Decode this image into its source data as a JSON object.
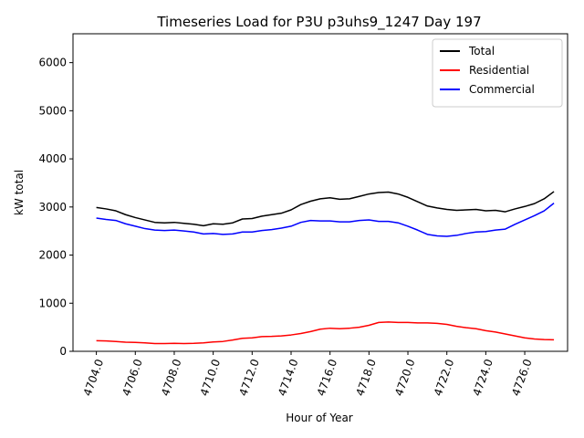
{
  "chart_data": {
    "type": "line",
    "title": "Timeseries Load for P3U p3uhs9_1247  Day 197",
    "xlabel": "Hour of Year",
    "ylabel": "kW total",
    "xlim": [
      4702.8,
      4728.2
    ],
    "ylim": [
      0,
      6600
    ],
    "xticks": [
      4704,
      4706,
      4708,
      4710,
      4712,
      4714,
      4716,
      4718,
      4720,
      4722,
      4724,
      4726
    ],
    "xtick_labels": [
      "4704.0",
      "4706.0",
      "4708.0",
      "4710.0",
      "4712.0",
      "4714.0",
      "4716.0",
      "4718.0",
      "4720.0",
      "4722.0",
      "4724.0",
      "4726.0"
    ],
    "yticks": [
      0,
      1000,
      2000,
      3000,
      4000,
      5000,
      6000
    ],
    "ytick_labels": [
      "0",
      "1000",
      "2000",
      "3000",
      "4000",
      "5000",
      "6000"
    ],
    "grid": false,
    "legend_position": "top-right",
    "x": [
      4704.0,
      4704.5,
      4705.0,
      4705.5,
      4706.0,
      4706.5,
      4707.0,
      4707.5,
      4708.0,
      4708.5,
      4709.0,
      4709.5,
      4710.0,
      4710.5,
      4711.0,
      4711.5,
      4712.0,
      4712.5,
      4713.0,
      4713.5,
      4714.0,
      4714.5,
      4715.0,
      4715.5,
      4716.0,
      4716.5,
      4717.0,
      4717.5,
      4718.0,
      4718.5,
      4719.0,
      4719.5,
      4720.0,
      4720.5,
      4721.0,
      4721.5,
      4722.0,
      4722.5,
      4723.0,
      4723.5,
      4724.0,
      4724.5,
      4725.0,
      4725.5,
      4726.0,
      4726.5,
      4727.0,
      4727.5
    ],
    "series": [
      {
        "name": "Total",
        "color": "#000000",
        "values": [
          2990,
          2960,
          2920,
          2840,
          2780,
          2730,
          2680,
          2670,
          2680,
          2660,
          2640,
          2610,
          2650,
          2640,
          2670,
          2750,
          2760,
          2810,
          2840,
          2870,
          2940,
          3050,
          3120,
          3170,
          3190,
          3160,
          3170,
          3220,
          3270,
          3300,
          3310,
          3270,
          3200,
          3110,
          3020,
          2980,
          2950,
          2930,
          2940,
          2950,
          2920,
          2930,
          2900,
          2960,
          3010,
          3070,
          3170,
          3320
        ]
      },
      {
        "name": "Residential",
        "color": "#ff0000",
        "values": [
          220,
          215,
          205,
          190,
          185,
          175,
          160,
          160,
          165,
          160,
          165,
          175,
          195,
          205,
          235,
          270,
          280,
          305,
          310,
          320,
          340,
          370,
          410,
          460,
          480,
          470,
          480,
          500,
          540,
          600,
          610,
          600,
          600,
          590,
          590,
          580,
          560,
          520,
          490,
          470,
          430,
          400,
          360,
          320,
          280,
          255,
          245,
          240
        ]
      },
      {
        "name": "Commercial",
        "color": "#0000ff",
        "values": [
          2770,
          2740,
          2720,
          2650,
          2600,
          2550,
          2520,
          2510,
          2520,
          2500,
          2480,
          2440,
          2450,
          2430,
          2440,
          2480,
          2480,
          2510,
          2530,
          2560,
          2600,
          2680,
          2720,
          2710,
          2710,
          2690,
          2690,
          2720,
          2730,
          2700,
          2700,
          2670,
          2600,
          2520,
          2430,
          2400,
          2390,
          2410,
          2450,
          2480,
          2490,
          2520,
          2540,
          2640,
          2730,
          2820,
          2920,
          3080
        ]
      }
    ]
  }
}
